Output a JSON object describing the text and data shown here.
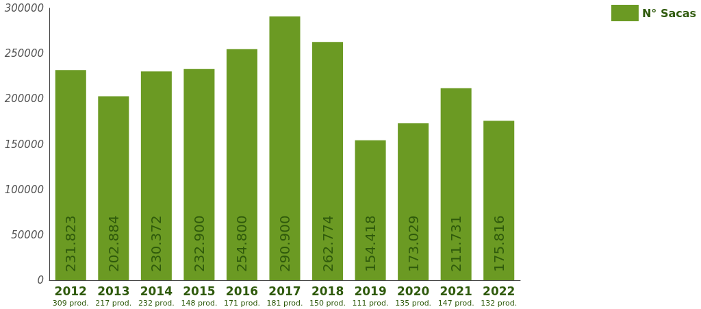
{
  "chart_data": {
    "type": "bar",
    "categories": [
      "2012\n309 prod.",
      "2013\n217 prod.",
      "2014\n232 prod.",
      "2015\n148 prod.",
      "2016\n171 prod.",
      "2017\n181 prod.",
      "2018\n150 prod.",
      "2019\n111 prod.",
      "2020\n135 prod.",
      "2021\n147 prod.",
      "2022\n132 prod."
    ],
    "series": [
      {
        "name": "N° Sacas",
        "color": "#6b9a23",
        "values": [
          231823,
          202884,
          230372,
          232900,
          254800,
          290900,
          262774,
          154418,
          173029,
          211731,
          175816
        ],
        "value_labels": [
          "231.823",
          "202.884",
          "230.372",
          "232.900",
          "254.800",
          "290.900",
          "262.774",
          "154.418",
          "173.029",
          "211.731",
          "175.816"
        ]
      }
    ],
    "ylim": [
      0,
      300000
    ],
    "yticks": [
      0,
      50000,
      100000,
      150000,
      200000,
      250000,
      300000
    ],
    "grid": false,
    "legend": "top right"
  }
}
